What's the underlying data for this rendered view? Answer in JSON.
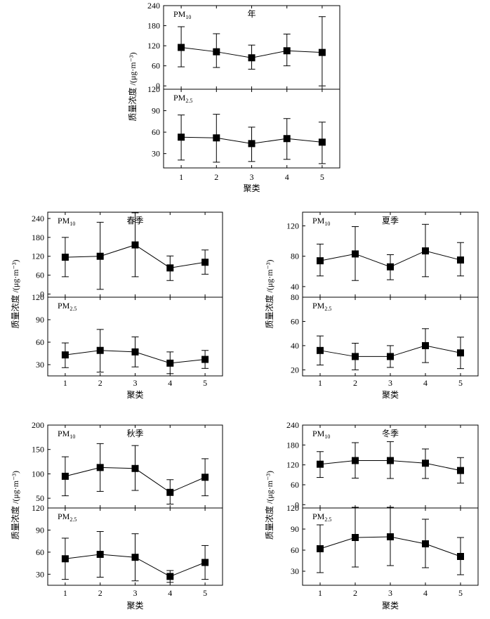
{
  "chart_data": [
    {
      "type": "errorbar",
      "id": "annual",
      "title": "年",
      "xlabel": "聚类",
      "ylabel": "质量浓度 /(μg·m⁻³)",
      "categories": [
        "1",
        "2",
        "3",
        "4",
        "5"
      ],
      "panels": [
        {
          "label": "PM",
          "label_sub": "10",
          "ylim": [
            -10,
            240
          ],
          "yticks": [
            0,
            60,
            120,
            180,
            240
          ],
          "values": [
            115,
            102,
            84,
            105,
            100
          ],
          "err_low": [
            57,
            55,
            50,
            60,
            0
          ],
          "err_high": [
            177,
            156,
            122,
            155,
            207
          ]
        },
        {
          "label": "PM",
          "label_sub": "2.5",
          "ylim": [
            10,
            120
          ],
          "yticks": [
            30,
            60,
            90,
            120
          ],
          "values": [
            53,
            52,
            44,
            51,
            46
          ],
          "err_low": [
            21,
            18,
            19,
            22,
            16
          ],
          "err_high": [
            84,
            85,
            67,
            79,
            74
          ]
        }
      ]
    },
    {
      "type": "errorbar",
      "id": "spring",
      "title": "春季",
      "xlabel": "聚类",
      "ylabel": "质量浓度 /(μg·m⁻³)",
      "categories": [
        "1",
        "2",
        "3",
        "4",
        "5"
      ],
      "panels": [
        {
          "label": "PM",
          "label_sub": "10",
          "ylim": [
            -10,
            260
          ],
          "yticks": [
            0,
            60,
            120,
            180,
            240
          ],
          "values": [
            117,
            120,
            156,
            83,
            101
          ],
          "err_low": [
            55,
            15,
            55,
            43,
            63
          ],
          "err_high": [
            180,
            228,
            258,
            121,
            140
          ]
        },
        {
          "label": "PM",
          "label_sub": "2.5",
          "ylim": [
            15,
            120
          ],
          "yticks": [
            30,
            60,
            90,
            120
          ],
          "values": [
            43,
            49,
            47,
            32,
            37
          ],
          "err_low": [
            26,
            20,
            27,
            18,
            25
          ],
          "err_high": [
            59,
            77,
            67,
            47,
            49
          ]
        }
      ]
    },
    {
      "type": "errorbar",
      "id": "summer",
      "title": "夏季",
      "xlabel": "聚类",
      "ylabel": "质量浓度 /(μg·m⁻³)",
      "categories": [
        "1",
        "2",
        "3",
        "4",
        "5"
      ],
      "panels": [
        {
          "label": "PM",
          "label_sub": "10",
          "ylim": [
            26,
            138
          ],
          "yticks": [
            40,
            80,
            120
          ],
          "values": [
            74,
            83,
            66,
            87,
            75
          ],
          "err_low": [
            54,
            48,
            49,
            53,
            54
          ],
          "err_high": [
            96,
            119,
            82,
            122,
            98
          ]
        },
        {
          "label": "PM",
          "label_sub": "2.5",
          "ylim": [
            15,
            80
          ],
          "yticks": [
            20,
            40,
            60,
            80
          ],
          "values": [
            36,
            31,
            31,
            40,
            34
          ],
          "err_low": [
            24,
            20,
            22,
            26,
            21
          ],
          "err_high": [
            48,
            42,
            40,
            54,
            47
          ]
        }
      ]
    },
    {
      "type": "errorbar",
      "id": "autumn",
      "title": "秋季",
      "xlabel": "聚类",
      "ylabel": "质量浓度 /(μg·m⁻³)",
      "categories": [
        "1",
        "2",
        "3",
        "4",
        "5"
      ],
      "panels": [
        {
          "label": "PM",
          "label_sub": "10",
          "ylim": [
            30,
            200
          ],
          "yticks": [
            50,
            100,
            150,
            200
          ],
          "values": [
            95,
            113,
            111,
            62,
            93
          ],
          "err_low": [
            55,
            64,
            66,
            38,
            55
          ],
          "err_high": [
            135,
            162,
            158,
            88,
            131
          ]
        },
        {
          "label": "PM",
          "label_sub": "2.5",
          "ylim": [
            15,
            120
          ],
          "yticks": [
            30,
            60,
            90,
            120
          ],
          "values": [
            51,
            57,
            53,
            27,
            46
          ],
          "err_low": [
            23,
            26,
            21,
            19,
            23
          ],
          "err_high": [
            79,
            88,
            85,
            35,
            69
          ]
        }
      ]
    },
    {
      "type": "errorbar",
      "id": "winter",
      "title": "冬季",
      "xlabel": "聚类",
      "ylabel": "质量浓度 /(μg·m⁻³)",
      "categories": [
        "1",
        "2",
        "3",
        "4",
        "5"
      ],
      "panels": [
        {
          "label": "PM",
          "label_sub": "10",
          "ylim": [
            -10,
            240
          ],
          "yticks": [
            0,
            60,
            120,
            180,
            240
          ],
          "values": [
            122,
            133,
            133,
            125,
            103
          ],
          "err_low": [
            82,
            80,
            79,
            79,
            65
          ],
          "err_high": [
            160,
            187,
            190,
            168,
            142
          ]
        },
        {
          "label": "PM",
          "label_sub": "2.5",
          "ylim": [
            10,
            120
          ],
          "yticks": [
            30,
            60,
            90,
            120
          ],
          "values": [
            62,
            78,
            79,
            69,
            51
          ],
          "err_low": [
            28,
            36,
            38,
            35,
            25
          ],
          "err_high": [
            96,
            121,
            121,
            104,
            78
          ]
        }
      ]
    }
  ]
}
